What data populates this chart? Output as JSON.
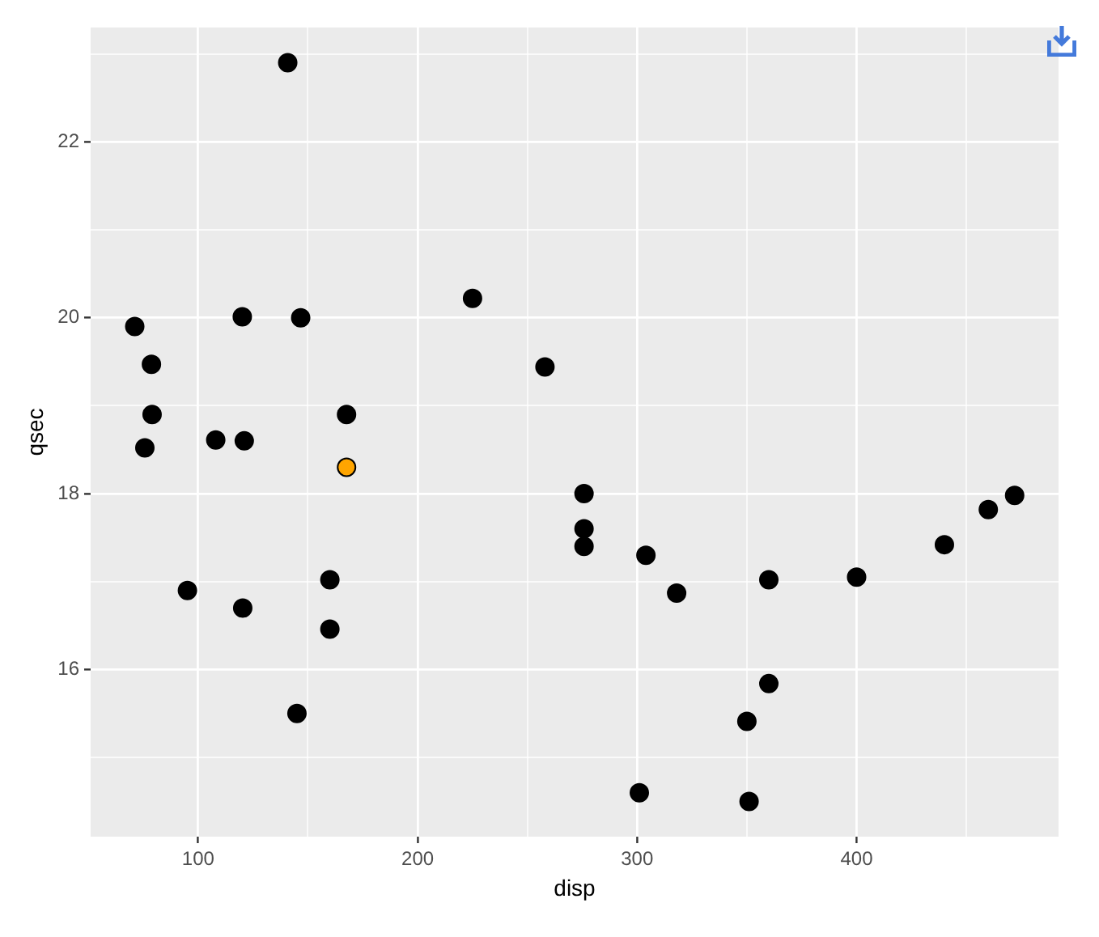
{
  "chart_data": {
    "type": "scatter",
    "xlabel": "disp",
    "ylabel": "qsec",
    "x": [
      160,
      160,
      108,
      258,
      360,
      225,
      360,
      146.7,
      140.8,
      167.6,
      167.6,
      275.8,
      275.8,
      275.8,
      472,
      460,
      440,
      78.7,
      75.7,
      71.1,
      120.1,
      318,
      304,
      350,
      400,
      79,
      120.3,
      95.1,
      351,
      145,
      301,
      121
    ],
    "values": [
      16.46,
      17.02,
      18.61,
      19.44,
      17.02,
      20.22,
      15.84,
      20,
      22.9,
      18.3,
      18.9,
      17.4,
      17.6,
      18,
      17.98,
      17.82,
      17.42,
      19.47,
      18.52,
      19.9,
      20.01,
      16.87,
      17.3,
      15.41,
      17.05,
      18.9,
      16.7,
      16.9,
      14.5,
      15.5,
      14.6,
      18.6
    ],
    "colors": [
      "#000000",
      "#000000",
      "#000000",
      "#000000",
      "#000000",
      "#000000",
      "#000000",
      "#000000",
      "#000000",
      "#ffa500",
      "#000000",
      "#000000",
      "#000000",
      "#000000",
      "#000000",
      "#000000",
      "#000000",
      "#000000",
      "#000000",
      "#000000",
      "#000000",
      "#000000",
      "#000000",
      "#000000",
      "#000000",
      "#000000",
      "#000000",
      "#000000",
      "#000000",
      "#000000",
      "#000000",
      "#000000"
    ],
    "xlim": [
      51,
      492
    ],
    "ylim": [
      14.1,
      23.3
    ],
    "xticks": [
      100,
      {
        "value": 150,
        "label": null
      },
      200,
      {
        "value": 250,
        "label": null
      },
      300,
      {
        "value": 350,
        "label": null
      },
      400,
      {
        "value": 450,
        "label": null
      }
    ],
    "yticks": [
      {
        "value": 15,
        "label": null
      },
      16,
      {
        "value": 17,
        "label": null
      },
      18,
      {
        "value": 19,
        "label": null
      },
      20,
      {
        "value": 21,
        "label": null
      },
      22,
      {
        "value": 23,
        "label": null
      }
    ],
    "grid": true,
    "marker": "circle"
  }
}
